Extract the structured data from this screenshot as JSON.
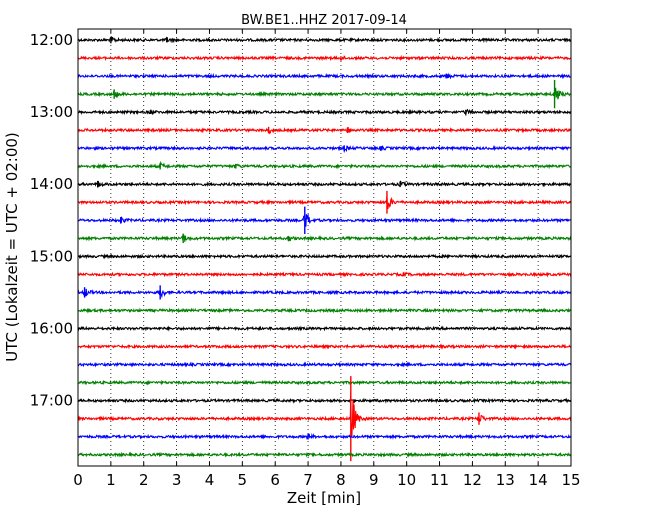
{
  "chart_data": {
    "type": "line",
    "title": "BW.BE1..HHZ 2017-09-14",
    "xlabel": "Zeit  [min]",
    "ylabel": "UTC (Lokalzeit = UTC + 02:00)",
    "xlim": [
      0,
      15
    ],
    "x_ticks": [
      "0",
      "1",
      "2",
      "3",
      "4",
      "5",
      "6",
      "7",
      "8",
      "9",
      "10",
      "11",
      "12",
      "13",
      "14",
      "15"
    ],
    "y_ticks": [
      "12:00",
      "13:00",
      "14:00",
      "15:00",
      "16:00",
      "17:00"
    ],
    "grid": "vertical dotted",
    "colors": [
      "#000000",
      "#ff0000",
      "#0000ff",
      "#008000"
    ],
    "traces": [
      {
        "start": "12:00",
        "color": "#000000",
        "events": [
          {
            "t": 1.0,
            "amp": 0.35
          },
          {
            "t": 2.7,
            "amp": 0.25
          }
        ]
      },
      {
        "start": "12:15",
        "color": "#ff0000",
        "events": [
          {
            "t": 8.0,
            "amp": 0.2
          }
        ]
      },
      {
        "start": "12:30",
        "color": "#0000ff",
        "events": [
          {
            "t": 11.2,
            "amp": 0.25
          }
        ]
      },
      {
        "start": "12:45",
        "color": "#008000",
        "events": [
          {
            "t": 1.1,
            "amp": 0.5
          },
          {
            "t": 14.5,
            "amp": 1.5
          }
        ]
      },
      {
        "start": "13:00",
        "color": "#000000",
        "events": [
          {
            "t": 2.2,
            "amp": 0.2
          },
          {
            "t": 11.8,
            "amp": 0.25
          }
        ]
      },
      {
        "start": "13:15",
        "color": "#ff0000",
        "events": [
          {
            "t": 5.8,
            "amp": 0.35
          },
          {
            "t": 8.2,
            "amp": 0.3
          }
        ]
      },
      {
        "start": "13:30",
        "color": "#0000ff",
        "events": [
          {
            "t": 8.1,
            "amp": 0.3
          },
          {
            "t": 9.2,
            "amp": 0.2
          }
        ]
      },
      {
        "start": "13:45",
        "color": "#008000",
        "events": [
          {
            "t": 2.5,
            "amp": 0.35
          },
          {
            "t": 4.8,
            "amp": 0.25
          }
        ]
      },
      {
        "start": "14:00",
        "color": "#000000",
        "events": [
          {
            "t": 0.6,
            "amp": 0.35
          },
          {
            "t": 9.8,
            "amp": 0.3
          }
        ]
      },
      {
        "start": "14:15",
        "color": "#ff0000",
        "events": [
          {
            "t": 9.4,
            "amp": 1.2
          }
        ]
      },
      {
        "start": "14:30",
        "color": "#0000ff",
        "events": [
          {
            "t": 1.3,
            "amp": 0.35
          },
          {
            "t": 6.9,
            "amp": 1.45
          }
        ]
      },
      {
        "start": "14:45",
        "color": "#008000",
        "events": [
          {
            "t": 3.2,
            "amp": 0.5
          },
          {
            "t": 6.4,
            "amp": 0.25
          }
        ]
      },
      {
        "start": "15:00",
        "color": "#000000",
        "events": []
      },
      {
        "start": "15:15",
        "color": "#ff0000",
        "events": [
          {
            "t": 9.9,
            "amp": 0.2
          }
        ]
      },
      {
        "start": "15:30",
        "color": "#0000ff",
        "events": [
          {
            "t": 0.2,
            "amp": 0.55
          },
          {
            "t": 2.5,
            "amp": 0.75
          }
        ]
      },
      {
        "start": "15:45",
        "color": "#008000",
        "events": []
      },
      {
        "start": "16:00",
        "color": "#000000",
        "events": []
      },
      {
        "start": "16:15",
        "color": "#ff0000",
        "events": []
      },
      {
        "start": "16:30",
        "color": "#0000ff",
        "events": []
      },
      {
        "start": "16:45",
        "color": "#008000",
        "events": []
      },
      {
        "start": "17:00",
        "color": "#000000",
        "events": []
      },
      {
        "start": "17:15",
        "color": "#ff0000",
        "events": [
          {
            "t": 8.3,
            "amp": 4.5
          },
          {
            "t": 12.2,
            "amp": 0.65
          }
        ]
      },
      {
        "start": "17:30",
        "color": "#0000ff",
        "events": [
          {
            "t": 7.0,
            "amp": 0.3
          }
        ]
      },
      {
        "start": "17:45",
        "color": "#008000",
        "events": []
      }
    ]
  }
}
